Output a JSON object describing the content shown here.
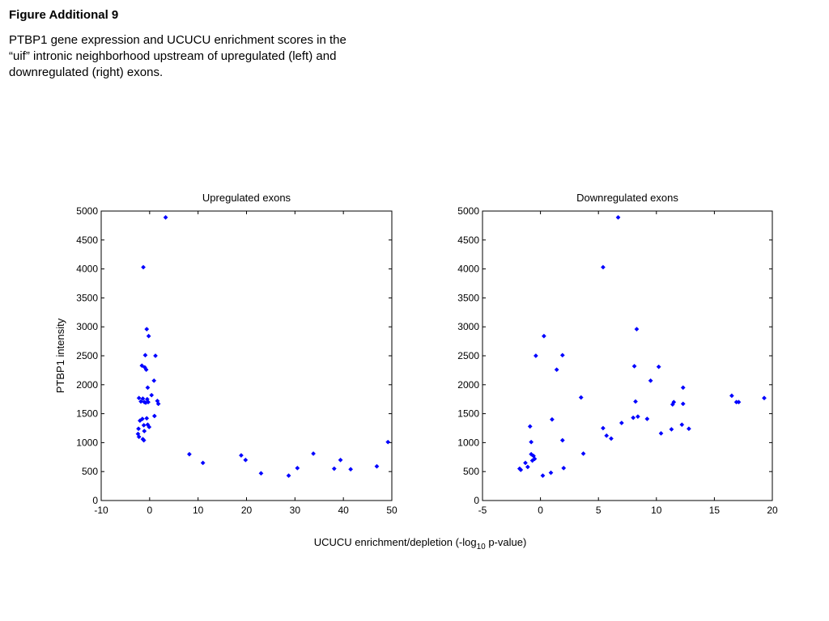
{
  "figure": {
    "title": "Figure Additional 9",
    "caption": "PTBP1 gene expression and UCUCU enrichment scores in the “uif” intronic neighborhood upstream of upregulated (left) and downregulated (right) exons."
  },
  "shared_xlabel": {
    "prefix": "UCUCU enrichment/depletion (-log",
    "subscript": "10",
    "suffix": " p-value)"
  },
  "marker_color": "#0000ff",
  "chart_data": [
    {
      "type": "scatter",
      "title": "Upregulated exons",
      "xlabel": "",
      "ylabel": "PTBP1 intensity",
      "xlim": [
        -10,
        50
      ],
      "ylim": [
        0,
        5000
      ],
      "xticks": [
        -10,
        0,
        10,
        20,
        30,
        40,
        50
      ],
      "yticks": [
        0,
        500,
        1000,
        1500,
        2000,
        2500,
        3000,
        3500,
        4000,
        4500,
        5000
      ],
      "grid": false,
      "points": [
        [
          3.3,
          4890
        ],
        [
          -1.3,
          4030
        ],
        [
          -0.6,
          2960
        ],
        [
          -0.2,
          2840
        ],
        [
          -0.9,
          2510
        ],
        [
          1.2,
          2500
        ],
        [
          -1.6,
          2330
        ],
        [
          -1.0,
          2300
        ],
        [
          -0.7,
          2260
        ],
        [
          0.9,
          2070
        ],
        [
          -0.4,
          1950
        ],
        [
          0.4,
          1820
        ],
        [
          -2.2,
          1770
        ],
        [
          -1.4,
          1760
        ],
        [
          -0.5,
          1750
        ],
        [
          -1.8,
          1710
        ],
        [
          -1.1,
          1700
        ],
        [
          -0.8,
          1690
        ],
        [
          -0.3,
          1700
        ],
        [
          1.6,
          1720
        ],
        [
          1.8,
          1670
        ],
        [
          1.0,
          1460
        ],
        [
          -0.6,
          1420
        ],
        [
          -1.5,
          1410
        ],
        [
          -2.0,
          1380
        ],
        [
          -1.2,
          1300
        ],
        [
          -0.4,
          1310
        ],
        [
          -0.1,
          1270
        ],
        [
          -2.3,
          1240
        ],
        [
          -1.1,
          1200
        ],
        [
          -2.4,
          1150
        ],
        [
          -2.2,
          1100
        ],
        [
          -1.4,
          1060
        ],
        [
          -1.2,
          1040
        ],
        [
          8.2,
          800
        ],
        [
          11.0,
          650
        ],
        [
          18.9,
          780
        ],
        [
          19.8,
          700
        ],
        [
          23.0,
          470
        ],
        [
          28.7,
          430
        ],
        [
          30.5,
          560
        ],
        [
          33.8,
          810
        ],
        [
          38.1,
          550
        ],
        [
          39.4,
          700
        ],
        [
          41.5,
          540
        ],
        [
          46.9,
          590
        ],
        [
          49.2,
          1010
        ]
      ]
    },
    {
      "type": "scatter",
      "title": "Downregulated exons",
      "xlabel": "",
      "ylabel": "",
      "xlim": [
        -5,
        20
      ],
      "ylim": [
        0,
        5000
      ],
      "xticks": [
        -5,
        0,
        5,
        10,
        15,
        20
      ],
      "yticks": [
        0,
        500,
        1000,
        1500,
        2000,
        2500,
        3000,
        3500,
        4000,
        4500,
        5000
      ],
      "grid": false,
      "points": [
        [
          6.7,
          4890
        ],
        [
          5.4,
          4030
        ],
        [
          0.3,
          2840
        ],
        [
          8.3,
          2960
        ],
        [
          -0.4,
          2500
        ],
        [
          1.9,
          2510
        ],
        [
          1.4,
          2260
        ],
        [
          8.1,
          2320
        ],
        [
          10.2,
          2310
        ],
        [
          9.5,
          2070
        ],
        [
          12.3,
          1950
        ],
        [
          3.5,
          1780
        ],
        [
          16.5,
          1810
        ],
        [
          16.9,
          1700
        ],
        [
          17.1,
          1700
        ],
        [
          19.3,
          1770
        ],
        [
          8.2,
          1710
        ],
        [
          11.5,
          1700
        ],
        [
          11.4,
          1660
        ],
        [
          12.3,
          1670
        ],
        [
          8.0,
          1430
        ],
        [
          8.4,
          1450
        ],
        [
          9.2,
          1410
        ],
        [
          1.0,
          1400
        ],
        [
          7.0,
          1340
        ],
        [
          12.2,
          1310
        ],
        [
          5.4,
          1250
        ],
        [
          11.3,
          1230
        ],
        [
          12.8,
          1240
        ],
        [
          -0.9,
          1280
        ],
        [
          10.4,
          1160
        ],
        [
          5.7,
          1120
        ],
        [
          6.1,
          1070
        ],
        [
          1.9,
          1040
        ],
        [
          -0.8,
          1010
        ],
        [
          3.7,
          810
        ],
        [
          -0.8,
          800
        ],
        [
          -0.6,
          770
        ],
        [
          -0.5,
          720
        ],
        [
          -0.7,
          690
        ],
        [
          -1.3,
          650
        ],
        [
          -1.1,
          580
        ],
        [
          -1.8,
          550
        ],
        [
          -1.7,
          530
        ],
        [
          2.0,
          560
        ],
        [
          0.9,
          480
        ],
        [
          0.2,
          430
        ]
      ]
    }
  ]
}
